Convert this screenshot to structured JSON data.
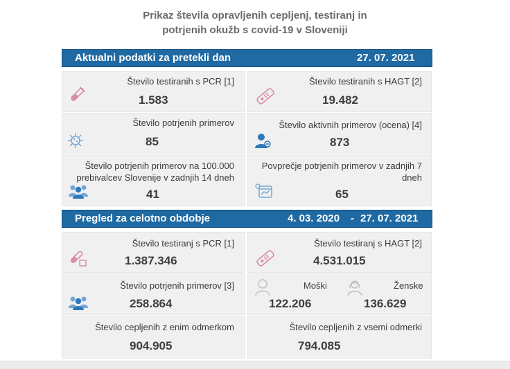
{
  "title": {
    "line1": "Prikaz števila opravljenih cepljenj, testiranj in",
    "line2": "potrjenih okužb s covid-19 v Sloveniji"
  },
  "current": {
    "header": "Aktualni podatki za pretekli dan",
    "date": "27. 07. 2021",
    "pcr_label": "Število testiranih s PCR [1]",
    "pcr_value": "1.583",
    "hagt_label": "Število testiranih s HAGT [2]",
    "hagt_value": "19.482",
    "confirmed_label": "Število potrjenih primerov",
    "confirmed_value": "85",
    "active_label": "Število aktivnih primerov (ocena) [4]",
    "active_value": "873",
    "per100k_label_1": "Število potrjenih primerov na 100.000",
    "per100k_label_2": "prebivalcev Slovenije v zadnjih 14 dneh",
    "per100k_value": "41",
    "avg7_label_1": "Povprečje potrjenih primerov v zadnjih 7",
    "avg7_label_2": "dneh",
    "avg7_value": "65"
  },
  "overall": {
    "header": "Pregled za celotno obdobje",
    "date_from": "4. 03. 2020",
    "dash": "-",
    "date_to": "27. 07. 2021",
    "pcr_label": "Število testiranj s PCR [1]",
    "pcr_value": "1.387.346",
    "hagt_label": "Število testiranj s HAGT [2]",
    "hagt_value": "4.531.015",
    "confirmed_label": "Število potrjenih primerov [3]",
    "confirmed_value": "258.864",
    "male_label": "Moški",
    "male_value": "122.206",
    "female_label": "Ženske",
    "female_value": "136.629",
    "vacc1_label": "Število cepljenih z enim odmerkom",
    "vacc1_value": "904.905",
    "vacc_full_label": "Število cepljenih z vsemi odmerki",
    "vacc_full_value": "794.085"
  },
  "icons": [
    "test-tube-icon",
    "rapid-test-icon",
    "virus-icon",
    "person-icon",
    "group-icon",
    "calendar-chart-icon",
    "male-icon",
    "female-icon"
  ],
  "colors": {
    "header_blue": "#1f6aa3",
    "icon_pink": "#d98ba0",
    "icon_blue": "#2f78b8",
    "card_bg": "#f0f0f0"
  }
}
